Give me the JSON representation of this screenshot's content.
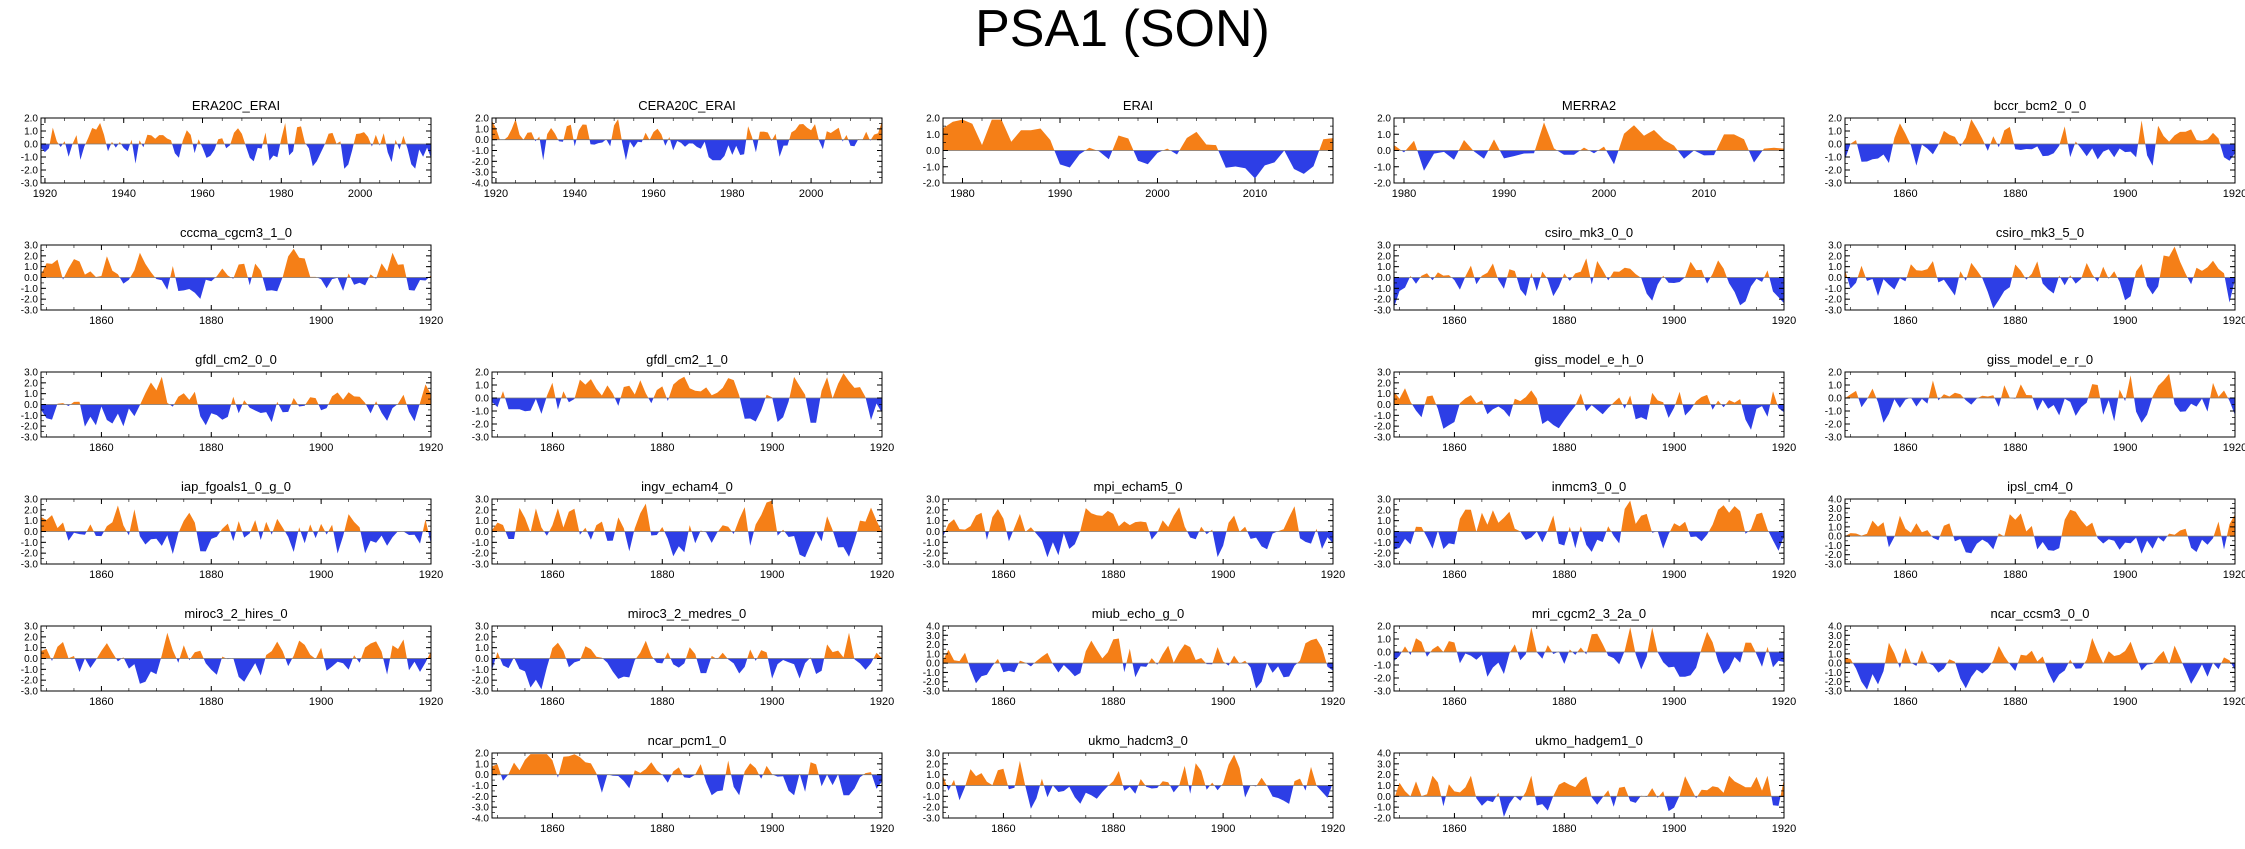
{
  "title": "PSA1 (SON)",
  "colors": {
    "positive": "#f57f17",
    "negative": "#2d3ee6",
    "axis": "#000000"
  },
  "chart_data": [
    {
      "type": "area",
      "title": "ERA20C_ERAI",
      "row": 0,
      "col": 0,
      "x_range": [
        1919,
        2018
      ],
      "ylim": [
        -3,
        2
      ],
      "yticks": [
        "2.0",
        "1.0",
        "0.0",
        "-1.0",
        "-2.0",
        "-3.0"
      ],
      "xticks": [
        1920,
        1940,
        1960,
        1980,
        2000
      ],
      "seed": 11,
      "amp": 1.1
    },
    {
      "type": "area",
      "title": "CERA20C_ERAI",
      "row": 0,
      "col": 1,
      "x_range": [
        1919,
        2018
      ],
      "ylim": [
        -4,
        2
      ],
      "yticks": [
        "2.0",
        "1.0",
        "0.0",
        "-1.0",
        "-2.0",
        "-3.0",
        "-4.0"
      ],
      "xticks": [
        1920,
        1940,
        1960,
        1980,
        2000
      ],
      "seed": 23,
      "amp": 1.3
    },
    {
      "type": "area",
      "title": "ERAI",
      "row": 0,
      "col": 2,
      "x_range": [
        1978,
        2018
      ],
      "ylim": [
        -2,
        2
      ],
      "yticks": [
        "2.0",
        "1.0",
        "0.0",
        "-1.0",
        "-2.0"
      ],
      "xticks": [
        1980,
        1990,
        2000,
        2010
      ],
      "seed": 37,
      "amp": 1.2
    },
    {
      "type": "area",
      "title": "MERRA2",
      "row": 0,
      "col": 3,
      "x_range": [
        1979,
        2018
      ],
      "ylim": [
        -2,
        2
      ],
      "yticks": [
        "2.0",
        "1.0",
        "0.0",
        "-1.0",
        "-2.0"
      ],
      "xticks": [
        1980,
        1990,
        2000,
        2010
      ],
      "seed": 41,
      "amp": 1.2
    },
    {
      "type": "area",
      "title": "bccr_bcm2_0_0",
      "row": 0,
      "col": 4,
      "x_range": [
        1849,
        1920
      ],
      "ylim": [
        -3,
        2
      ],
      "yticks": [
        "2.0",
        "1.0",
        "0.0",
        "-1.0",
        "-2.0",
        "-3.0"
      ],
      "xticks": [
        1860,
        1880,
        1900,
        1920
      ],
      "seed": 53,
      "amp": 1.3
    },
    {
      "type": "area",
      "title": "cccma_cgcm3_1_0",
      "row": 1,
      "col": 0,
      "x_range": [
        1849,
        1920
      ],
      "ylim": [
        -3,
        3
      ],
      "yticks": [
        "3.0",
        "2.0",
        "1.0",
        "0.0",
        "-1.0",
        "-2.0",
        "-3.0"
      ],
      "xticks": [
        1860,
        1880,
        1900,
        1920
      ],
      "seed": 61,
      "amp": 1.4
    },
    {
      "type": "area",
      "title": "csiro_mk3_0_0",
      "row": 1,
      "col": 3,
      "x_range": [
        1849,
        1920
      ],
      "ylim": [
        -3,
        3
      ],
      "yticks": [
        "3.0",
        "2.0",
        "1.0",
        "0.0",
        "-1.0",
        "-2.0",
        "-3.0"
      ],
      "xticks": [
        1860,
        1880,
        1900,
        1920
      ],
      "seed": 71,
      "amp": 1.4
    },
    {
      "type": "area",
      "title": "csiro_mk3_5_0",
      "row": 1,
      "col": 4,
      "x_range": [
        1849,
        1920
      ],
      "ylim": [
        -3,
        3
      ],
      "yticks": [
        "3.0",
        "2.0",
        "1.0",
        "0.0",
        "-1.0",
        "-2.0",
        "-3.0"
      ],
      "xticks": [
        1860,
        1880,
        1900,
        1920
      ],
      "seed": 79,
      "amp": 1.4
    },
    {
      "type": "area",
      "title": "gfdl_cm2_0_0",
      "row": 2,
      "col": 0,
      "x_range": [
        1849,
        1920
      ],
      "ylim": [
        -3,
        3
      ],
      "yticks": [
        "3.0",
        "2.0",
        "1.0",
        "0.0",
        "-1.0",
        "-2.0",
        "-3.0"
      ],
      "xticks": [
        1860,
        1880,
        1900,
        1920
      ],
      "seed": 83,
      "amp": 1.4
    },
    {
      "type": "area",
      "title": "gfdl_cm2_1_0",
      "row": 2,
      "col": 1,
      "x_range": [
        1849,
        1920
      ],
      "ylim": [
        -3,
        2
      ],
      "yticks": [
        "2.0",
        "1.0",
        "0.0",
        "-1.0",
        "-2.0",
        "-3.0"
      ],
      "xticks": [
        1860,
        1880,
        1900,
        1920
      ],
      "seed": 89,
      "amp": 1.3
    },
    {
      "type": "area",
      "title": "giss_model_e_h_0",
      "row": 2,
      "col": 3,
      "x_range": [
        1849,
        1920
      ],
      "ylim": [
        -3,
        3
      ],
      "yticks": [
        "3.0",
        "2.0",
        "1.0",
        "0.0",
        "-1.0",
        "-2.0",
        "-3.0"
      ],
      "xticks": [
        1860,
        1880,
        1900,
        1920
      ],
      "seed": 97,
      "amp": 1.4
    },
    {
      "type": "area",
      "title": "giss_model_e_r_0",
      "row": 2,
      "col": 4,
      "x_range": [
        1849,
        1920
      ],
      "ylim": [
        -3,
        2
      ],
      "yticks": [
        "2.0",
        "1.0",
        "0.0",
        "-1.0",
        "-2.0",
        "-3.0"
      ],
      "xticks": [
        1860,
        1880,
        1900,
        1920
      ],
      "seed": 101,
      "amp": 1.3
    },
    {
      "type": "area",
      "title": "iap_fgoals1_0_g_0",
      "row": 3,
      "col": 0,
      "x_range": [
        1849,
        1920
      ],
      "ylim": [
        -3,
        3
      ],
      "yticks": [
        "3.0",
        "2.0",
        "1.0",
        "0.0",
        "-1.0",
        "-2.0",
        "-3.0"
      ],
      "xticks": [
        1860,
        1880,
        1900,
        1920
      ],
      "seed": 103,
      "amp": 1.4
    },
    {
      "type": "area",
      "title": "ingv_echam4_0",
      "row": 3,
      "col": 1,
      "x_range": [
        1849,
        1920
      ],
      "ylim": [
        -3,
        3
      ],
      "yticks": [
        "3.0",
        "2.0",
        "1.0",
        "0.0",
        "-1.0",
        "-2.0",
        "-3.0"
      ],
      "xticks": [
        1860,
        1880,
        1900,
        1920
      ],
      "seed": 107,
      "amp": 1.4
    },
    {
      "type": "area",
      "title": "mpi_echam5_0",
      "row": 3,
      "col": 2,
      "x_range": [
        1849,
        1920
      ],
      "ylim": [
        -3,
        3
      ],
      "yticks": [
        "3.0",
        "2.0",
        "1.0",
        "0.0",
        "-1.0",
        "-2.0",
        "-3.0"
      ],
      "xticks": [
        1860,
        1880,
        1900,
        1920
      ],
      "seed": 109,
      "amp": 1.4
    },
    {
      "type": "area",
      "title": "inmcm3_0_0",
      "row": 3,
      "col": 3,
      "x_range": [
        1849,
        1920
      ],
      "ylim": [
        -3,
        3
      ],
      "yticks": [
        "3.0",
        "2.0",
        "1.0",
        "0.0",
        "-1.0",
        "-2.0",
        "-3.0"
      ],
      "xticks": [
        1860,
        1880,
        1900,
        1920
      ],
      "seed": 113,
      "amp": 1.4
    },
    {
      "type": "area",
      "title": "ipsl_cm4_0",
      "row": 3,
      "col": 4,
      "x_range": [
        1849,
        1920
      ],
      "ylim": [
        -3,
        4
      ],
      "yticks": [
        "4.0",
        "3.0",
        "2.0",
        "1.0",
        "0.0",
        "-1.0",
        "-2.0",
        "-3.0"
      ],
      "xticks": [
        1860,
        1880,
        1900,
        1920
      ],
      "seed": 127,
      "amp": 1.5
    },
    {
      "type": "area",
      "title": "miroc3_2_hires_0",
      "row": 4,
      "col": 0,
      "x_range": [
        1849,
        1920
      ],
      "ylim": [
        -3,
        3
      ],
      "yticks": [
        "3.0",
        "2.0",
        "1.0",
        "0.0",
        "-1.0",
        "-2.0",
        "-3.0"
      ],
      "xticks": [
        1860,
        1880,
        1900,
        1920
      ],
      "seed": 131,
      "amp": 1.3
    },
    {
      "type": "area",
      "title": "miroc3_2_medres_0",
      "row": 4,
      "col": 1,
      "x_range": [
        1849,
        1920
      ],
      "ylim": [
        -3,
        3
      ],
      "yticks": [
        "3.0",
        "2.0",
        "1.0",
        "0.0",
        "-1.0",
        "-2.0",
        "-3.0"
      ],
      "xticks": [
        1860,
        1880,
        1900,
        1920
      ],
      "seed": 137,
      "amp": 1.4
    },
    {
      "type": "area",
      "title": "miub_echo_g_0",
      "row": 4,
      "col": 2,
      "x_range": [
        1849,
        1920
      ],
      "ylim": [
        -3,
        4
      ],
      "yticks": [
        "4.0",
        "3.0",
        "2.0",
        "1.0",
        "0.0",
        "-1.0",
        "-2.0",
        "-3.0"
      ],
      "xticks": [
        1860,
        1880,
        1900,
        1920
      ],
      "seed": 139,
      "amp": 1.5
    },
    {
      "type": "area",
      "title": "mri_cgcm2_3_2a_0",
      "row": 4,
      "col": 3,
      "x_range": [
        1849,
        1920
      ],
      "ylim": [
        -3,
        2
      ],
      "yticks": [
        "2.0",
        "1.0",
        "0.0",
        "-1.0",
        "-2.0",
        "-3.0"
      ],
      "xticks": [
        1860,
        1880,
        1900,
        1920
      ],
      "seed": 149,
      "amp": 1.3
    },
    {
      "type": "area",
      "title": "ncar_ccsm3_0_0",
      "row": 4,
      "col": 4,
      "x_range": [
        1849,
        1920
      ],
      "ylim": [
        -3,
        4
      ],
      "yticks": [
        "4.0",
        "3.0",
        "2.0",
        "1.0",
        "0.0",
        "-1.0",
        "-2.0",
        "-3.0"
      ],
      "xticks": [
        1860,
        1880,
        1900,
        1920
      ],
      "seed": 151,
      "amp": 1.4
    },
    {
      "type": "area",
      "title": "ncar_pcm1_0",
      "row": 5,
      "col": 1,
      "x_range": [
        1849,
        1920
      ],
      "ylim": [
        -4,
        2
      ],
      "yticks": [
        "2.0",
        "1.0",
        "0.0",
        "-1.0",
        "-2.0",
        "-3.0",
        "-4.0"
      ],
      "xticks": [
        1860,
        1880,
        1900,
        1920
      ],
      "seed": 157,
      "amp": 1.4
    },
    {
      "type": "area",
      "title": "ukmo_hadcm3_0",
      "row": 5,
      "col": 2,
      "x_range": [
        1849,
        1920
      ],
      "ylim": [
        -3,
        3
      ],
      "yticks": [
        "3.0",
        "2.0",
        "1.0",
        "0.0",
        "-1.0",
        "-2.0",
        "-3.0"
      ],
      "xticks": [
        1860,
        1880,
        1900,
        1920
      ],
      "seed": 163,
      "amp": 1.4
    },
    {
      "type": "area",
      "title": "ukmo_hadgem1_0",
      "row": 5,
      "col": 3,
      "x_range": [
        1849,
        1920
      ],
      "ylim": [
        -2,
        4
      ],
      "yticks": [
        "4.0",
        "3.0",
        "2.0",
        "1.0",
        "0.0",
        "-1.0",
        "-2.0"
      ],
      "xticks": [
        1860,
        1880,
        1900,
        1920
      ],
      "seed": 167,
      "amp": 1.4
    }
  ]
}
